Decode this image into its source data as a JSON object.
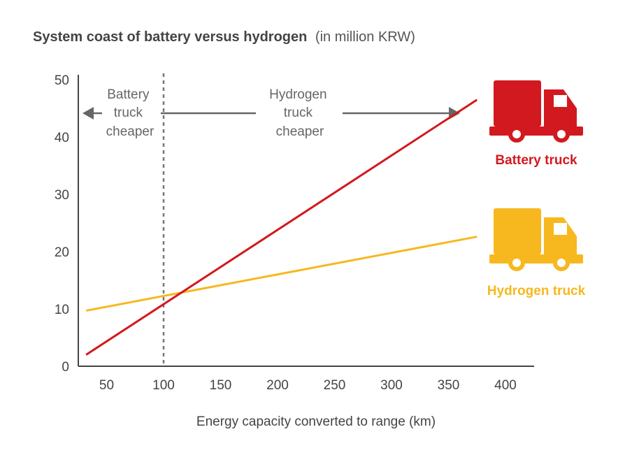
{
  "chart_data": {
    "type": "line",
    "title": "System coast of battery versus hydrogen",
    "subtitle": "(in million KRW)",
    "xlabel": "Energy capacity converted to range (km)",
    "ylabel": "",
    "xlim": [
      25,
      425
    ],
    "ylim": [
      0,
      50
    ],
    "x_ticks": [
      50,
      100,
      150,
      200,
      250,
      300,
      350,
      400
    ],
    "y_ticks": [
      0,
      10,
      20,
      30,
      40,
      50
    ],
    "grid": false,
    "series": [
      {
        "name": "Battery truck",
        "color": "#d2191f",
        "points": [
          [
            32,
            2
          ],
          [
            375,
            46.5
          ]
        ]
      },
      {
        "name": "Hydrogen truck",
        "color": "#f7b81f",
        "points": [
          [
            32,
            9.7
          ],
          [
            375,
            22.6
          ]
        ]
      }
    ],
    "threshold": {
      "x": 100,
      "style": "dotted"
    },
    "regions": [
      {
        "lines": [
          "Battery",
          "truck",
          "cheaper"
        ],
        "arrow": "left"
      },
      {
        "lines": [
          "Hydrogen",
          "truck",
          "cheaper"
        ],
        "arrow": "right"
      }
    ],
    "legend": {
      "placement": "right",
      "icon": "truck-icon"
    }
  }
}
